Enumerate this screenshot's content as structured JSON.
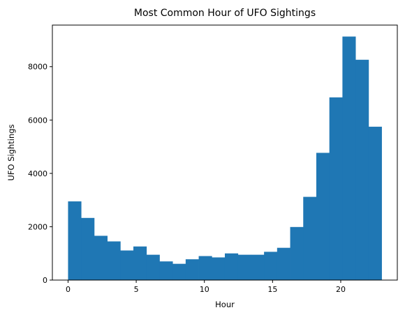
{
  "chart_data": {
    "type": "bar",
    "title": "Most Common Hour of UFO Sightings",
    "xlabel": "Hour",
    "ylabel": "UFO Sightings",
    "xlim": [
      -1.15,
      24.15
    ],
    "ylim": [
      0,
      9560
    ],
    "xticks": [
      0,
      5,
      10,
      15,
      20
    ],
    "yticks": [
      0,
      2000,
      4000,
      6000,
      8000
    ],
    "bin_start": 0,
    "bin_width": 0.9583,
    "values": [
      2950,
      2330,
      1660,
      1450,
      1110,
      1260,
      950,
      700,
      610,
      780,
      900,
      850,
      1000,
      950,
      950,
      1060,
      1210,
      1990,
      3120,
      4770,
      6850,
      9130,
      8260,
      5750
    ],
    "grid": false,
    "legend": "none",
    "bar_color": "#1f77b4"
  }
}
